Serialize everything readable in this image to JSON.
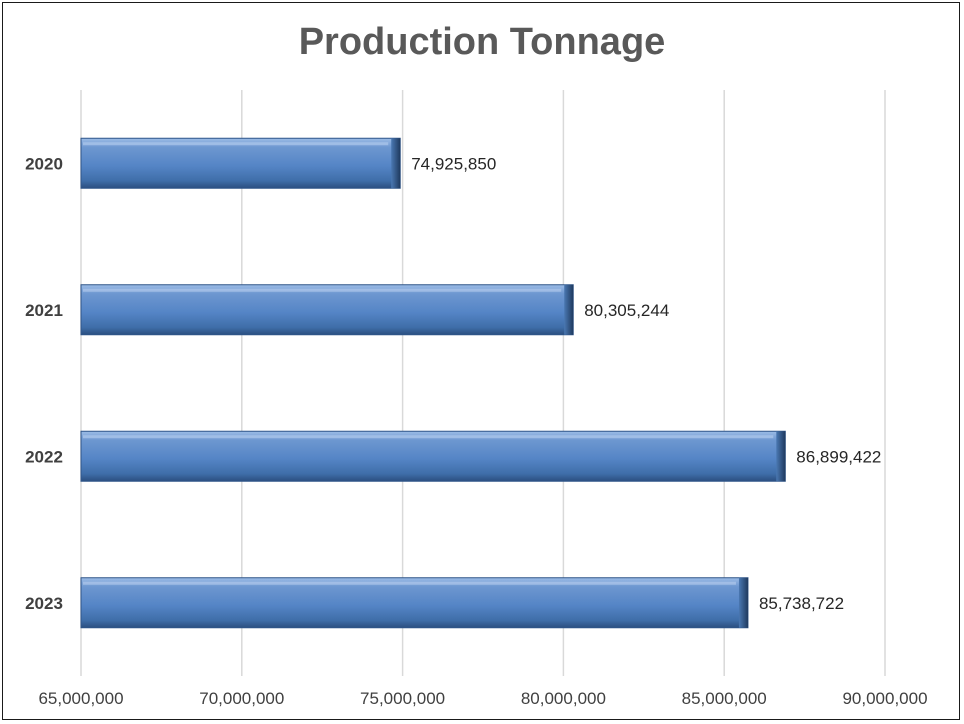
{
  "chart_data": {
    "type": "bar",
    "orientation": "horizontal",
    "title": "Production Tonnage",
    "categories": [
      "2020",
      "2021",
      "2022",
      "2023"
    ],
    "values": [
      74925850,
      80305244,
      86899422,
      85738722
    ],
    "value_labels": [
      "74,925,850",
      "80,305,244",
      "86,899,422",
      "85,738,722"
    ],
    "xlim": [
      65000000,
      90000000
    ],
    "xticks": [
      65000000,
      70000000,
      75000000,
      80000000,
      85000000,
      90000000
    ],
    "xtick_labels": [
      "65,000,000",
      "70,000,000",
      "75,000,000",
      "80,000,000",
      "85,000,000",
      "90,000,000"
    ],
    "grid": "vertical",
    "legend": "none",
    "colors": {
      "bar": "#4f81bd",
      "bar_light": "#7fa6d8",
      "bar_dark": "#2e5687",
      "grid": "#d9d9d9"
    }
  }
}
